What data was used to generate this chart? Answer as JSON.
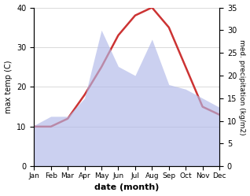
{
  "months": [
    "Jan",
    "Feb",
    "Mar",
    "Apr",
    "May",
    "Jun",
    "Jul",
    "Aug",
    "Sep",
    "Oct",
    "Nov",
    "Dec"
  ],
  "temperature": [
    10,
    10,
    12,
    18,
    25,
    33,
    38,
    40,
    35,
    25,
    15,
    13
  ],
  "precipitation": [
    9,
    11,
    11,
    15,
    30,
    22,
    20,
    28,
    18,
    17,
    15,
    13
  ],
  "temp_color": "#cc3333",
  "precip_color": "#b0b8e8",
  "precip_alpha": 0.65,
  "xlabel": "date (month)",
  "ylabel_left": "max temp (C)",
  "ylabel_right": "med. precipitation (kg/m2)",
  "ylim_left": [
    0,
    40
  ],
  "ylim_right": [
    0,
    35
  ],
  "yticks_left": [
    0,
    10,
    20,
    30,
    40
  ],
  "yticks_right": [
    0,
    5,
    10,
    15,
    20,
    25,
    30,
    35
  ],
  "bg_color": "#ffffff",
  "grid_color": "#cccccc",
  "linewidth_temp": 1.8
}
